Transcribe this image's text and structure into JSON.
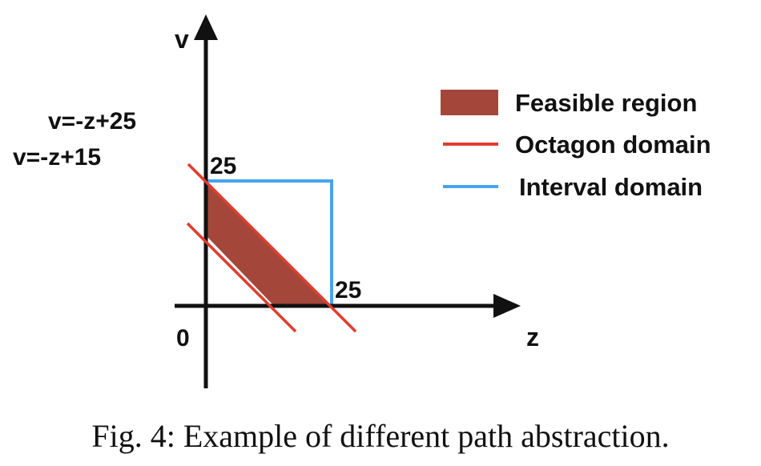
{
  "axes": {
    "x_label": "z",
    "y_label": "v",
    "origin_label": "0",
    "x_tick_label": "25",
    "y_tick_label": "25"
  },
  "equations": {
    "upper": "v=-z+25",
    "lower": "v=-z+15"
  },
  "legend": {
    "items": [
      {
        "label": "Feasible region",
        "color": "#a4463a",
        "kind": "fill"
      },
      {
        "label": "Octagon domain",
        "color": "#e23c2c",
        "kind": "line"
      },
      {
        "label": "Interval domain",
        "color": "#47a3ee",
        "kind": "line"
      }
    ]
  },
  "caption": "Fig. 4: Example of different path abstraction.",
  "colors": {
    "axis": "#111111",
    "feasible": "#a4463a",
    "octagon": "#e23c2c",
    "interval": "#47a3ee"
  }
}
